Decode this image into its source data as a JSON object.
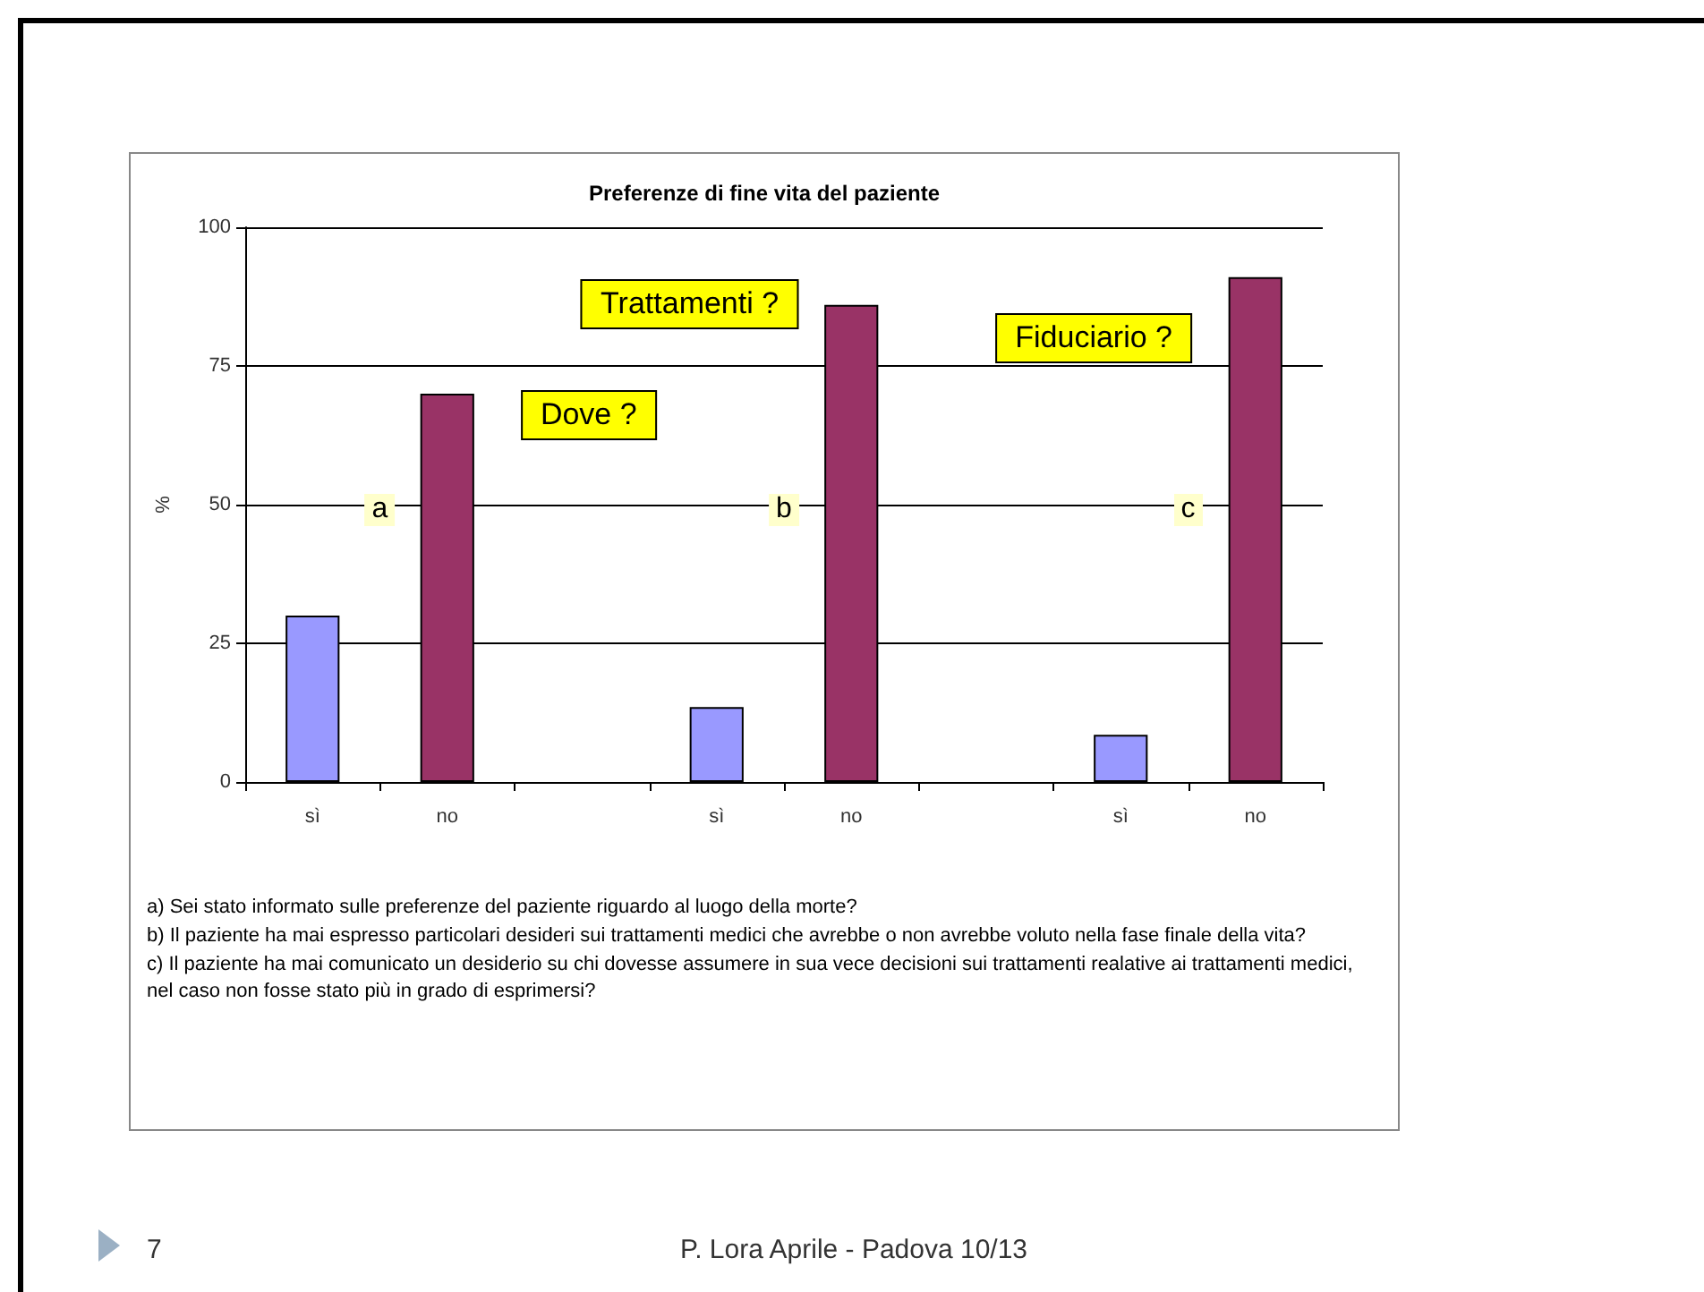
{
  "chart_data": {
    "type": "bar",
    "title": "Preferenze di fine vita del paziente",
    "ylabel": "%",
    "categories": [
      "sì",
      "no",
      null,
      "sì",
      "no",
      null,
      "sì",
      "no"
    ],
    "values": [
      30,
      70,
      null,
      13.5,
      86,
      null,
      8.5,
      91
    ],
    "colors": [
      "#9999ff",
      "#993366",
      null,
      "#9999ff",
      "#993366",
      null,
      "#9999ff",
      "#993366"
    ],
    "ylim": [
      0,
      100
    ],
    "yticks": [
      0,
      25,
      50,
      75,
      100
    ],
    "grid": "y",
    "annotations": [
      "Dove ?",
      "Trattamenti ?",
      "Fiduciario ?",
      "a",
      "b",
      "c",
      "a) Sei stato informato sulle preferenze del paziente riguardo al luogo della morte?",
      "b) Il paziente ha mai espresso particolari desideri sui trattamenti medici che avrebbe o non avrebbe voluto nella fase finale della vita?",
      "c) Il paziente ha mai comunicato un desiderio su chi dovesse assumere in sua vece decisioni sui trattamenti realative ai trattamenti medici, nel caso non fosse stato più in grado di esprimersi?",
      "7",
      "P.  Lora Aprile - Padova 10/13"
    ]
  }
}
